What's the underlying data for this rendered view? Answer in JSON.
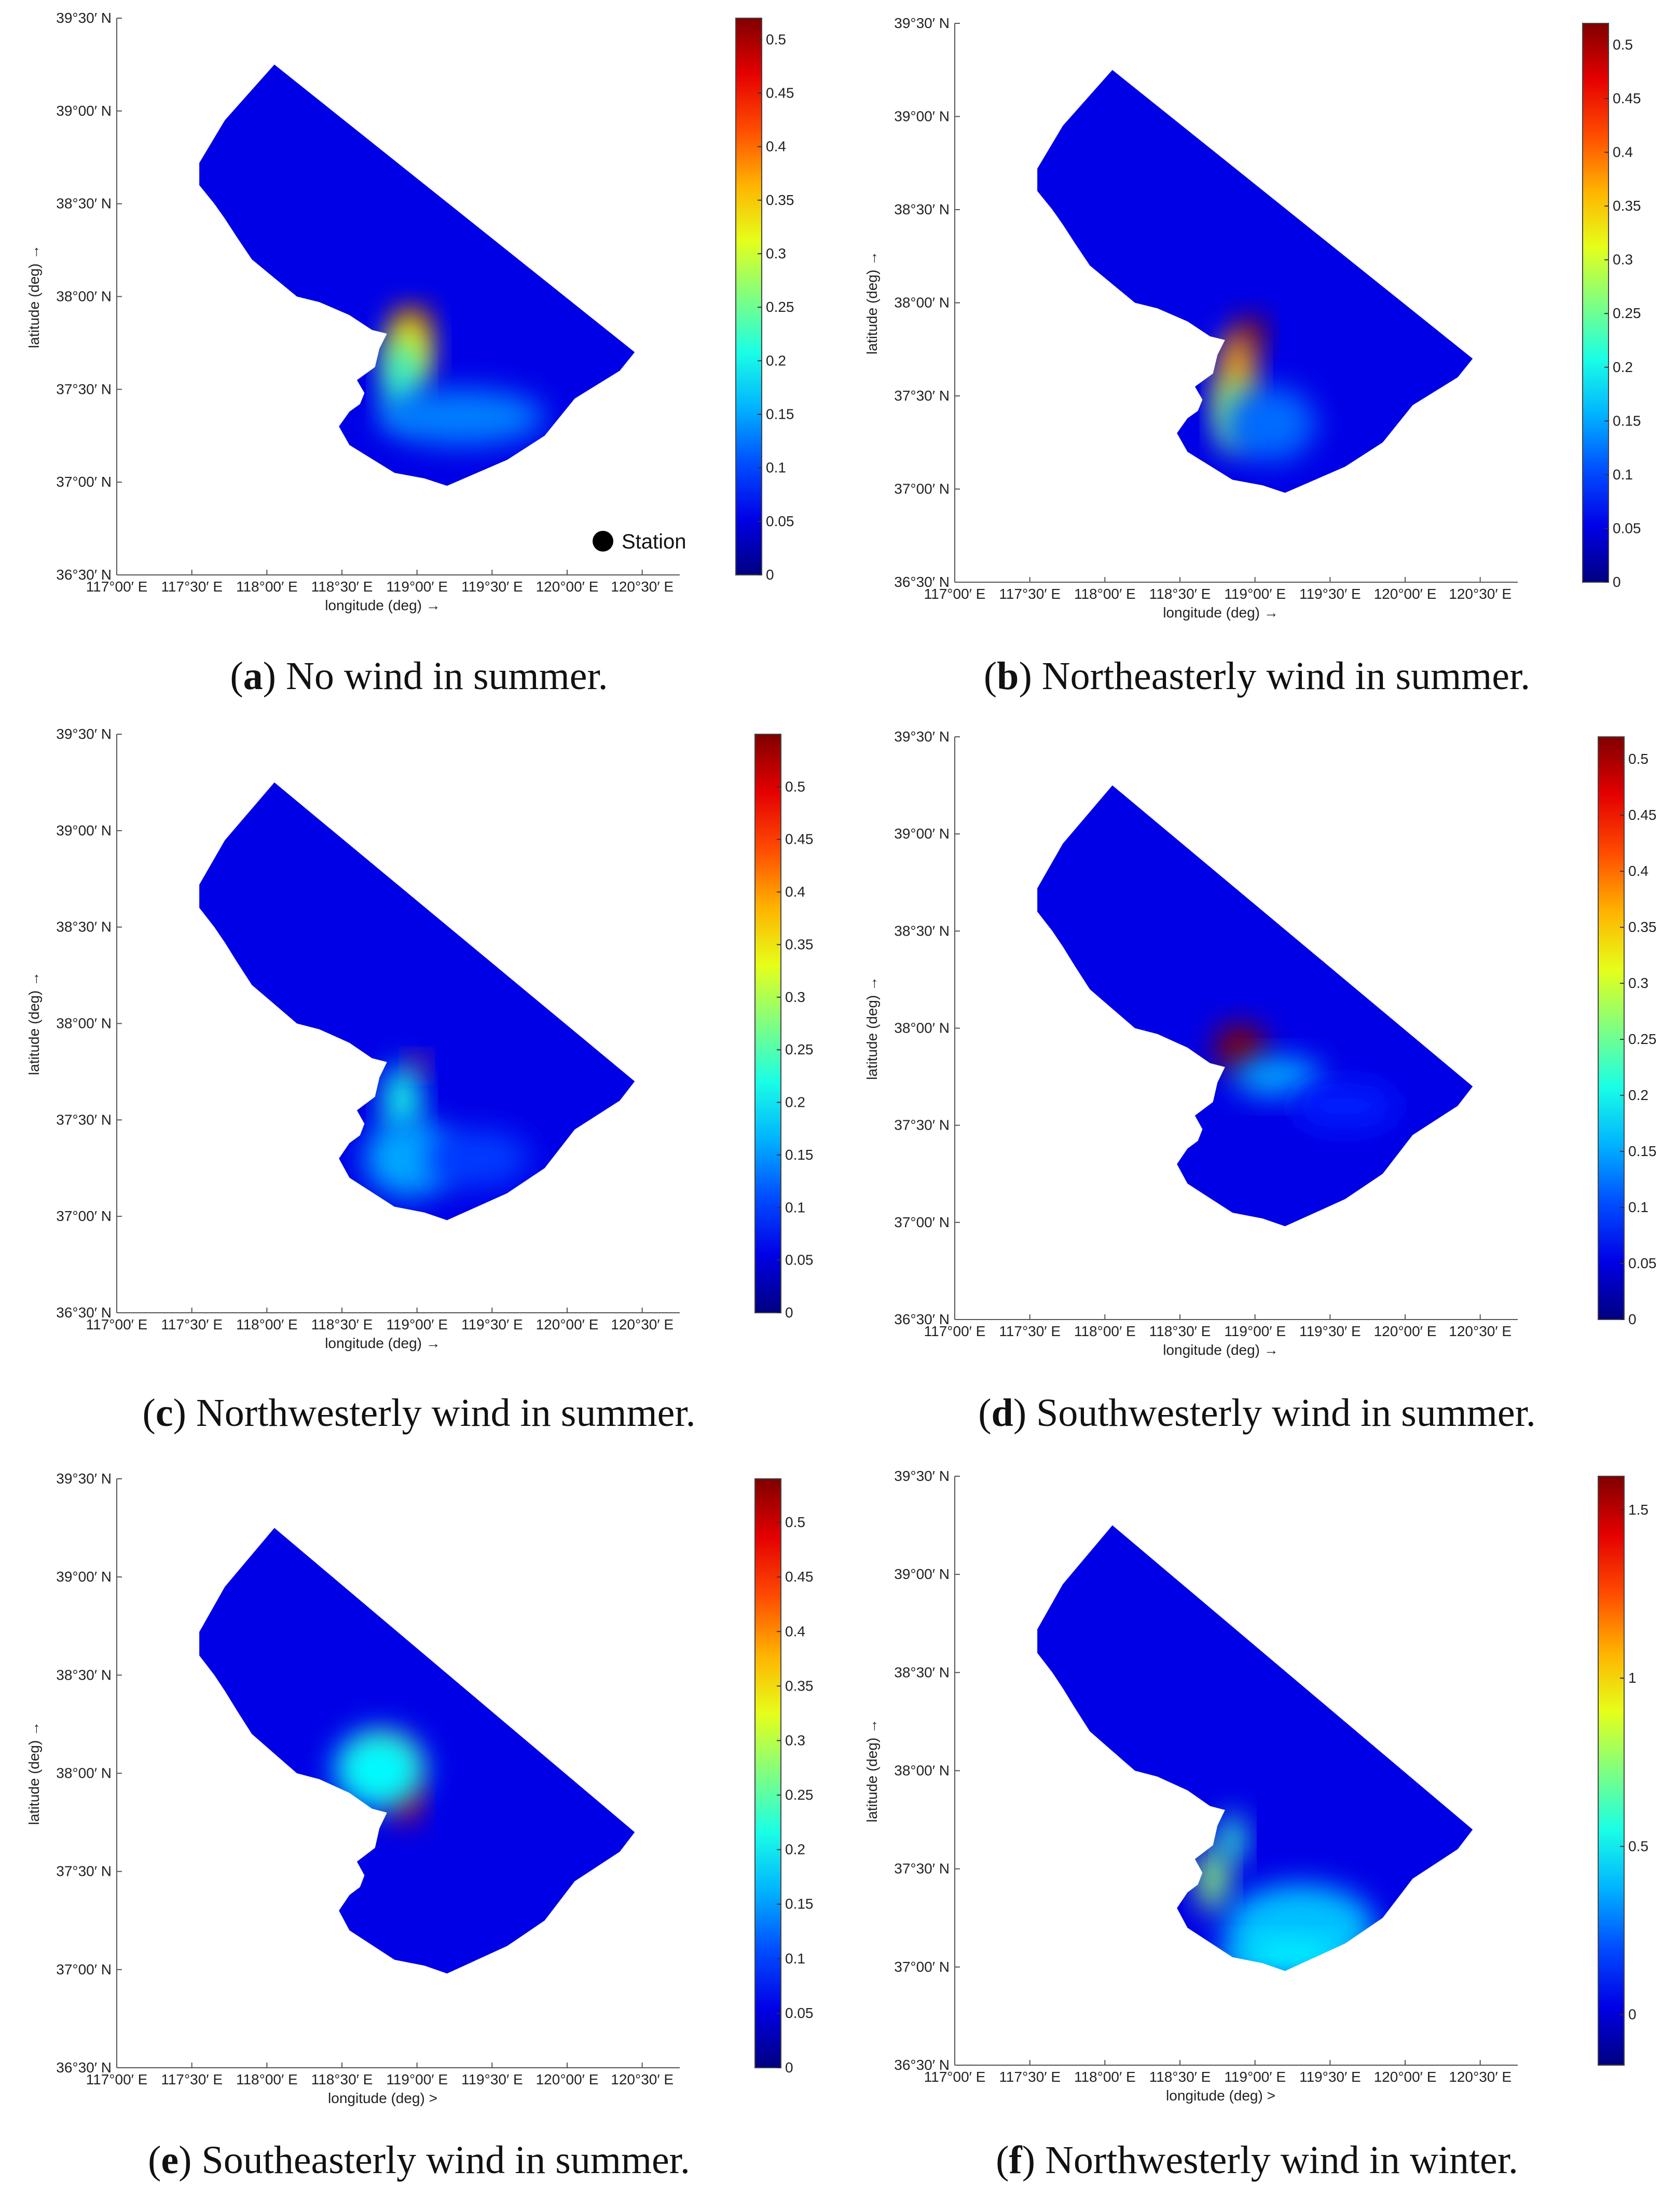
{
  "chart_data": [
    {
      "panel_id": "a",
      "type": "heatmap",
      "caption_letter": "a",
      "caption_text": "No wind in summer.",
      "xlabel": "longitude (deg) →",
      "ylabel": "latitude (deg) →",
      "x_ticks": [
        "117°00′ E",
        "117°30′ E",
        "118°00′ E",
        "118°30′ E",
        "119°00′ E",
        "119°30′ E",
        "120°00′ E",
        "120°30′ E"
      ],
      "y_ticks": [
        "36°30′ N",
        "37°00′ N",
        "37°30′ N",
        "38°00′ N",
        "38°30′ N",
        "39°00′ N",
        "39°30′ N"
      ],
      "xlim": [
        117.0,
        120.75
      ],
      "ylim": [
        36.5,
        39.5
      ],
      "colorbar_ticks": [
        "0",
        "0.05",
        "0.1",
        "0.15",
        "0.2",
        "0.25",
        "0.3",
        "0.35",
        "0.4",
        "0.45",
        "0.5"
      ],
      "colorbar_range": [
        0,
        0.52
      ],
      "legend": {
        "label": "Station",
        "position": "bottom-right"
      },
      "hotspots": [
        {
          "lon": 118.97,
          "lat": 37.85,
          "rx": 0.11,
          "ry": 0.09,
          "value": 0.52
        },
        {
          "lon": 118.95,
          "lat": 37.72,
          "rx": 0.14,
          "ry": 0.2,
          "value": 0.33
        },
        {
          "lon": 118.9,
          "lat": 37.55,
          "rx": 0.12,
          "ry": 0.22,
          "value": 0.22
        },
        {
          "lon": 119.3,
          "lat": 37.35,
          "rx": 0.55,
          "ry": 0.15,
          "value": 0.13
        }
      ]
    },
    {
      "panel_id": "b",
      "type": "heatmap",
      "caption_letter": "b",
      "caption_text": "Northeasterly wind in summer.",
      "xlabel": "longitude (deg) →",
      "ylabel": "latitude (deg) →",
      "x_ticks": [
        "117°00′ E",
        "117°30′ E",
        "118°00′ E",
        "118°30′ E",
        "119°00′ E",
        "119°30′ E",
        "120°00′ E",
        "120°30′ E"
      ],
      "y_ticks": [
        "36°30′ N",
        "37°00′ N",
        "37°30′ N",
        "38°00′ N",
        "38°30′ N",
        "39°00′ N",
        "39°30′ N"
      ],
      "xlim": [
        117.0,
        120.75
      ],
      "ylim": [
        36.5,
        39.5
      ],
      "colorbar_ticks": [
        "0",
        "0.05",
        "0.1",
        "0.15",
        "0.2",
        "0.25",
        "0.3",
        "0.35",
        "0.4",
        "0.45",
        "0.5"
      ],
      "colorbar_range": [
        0,
        0.52
      ],
      "hotspots": [
        {
          "lon": 118.97,
          "lat": 37.83,
          "rx": 0.1,
          "ry": 0.1,
          "value": 0.52
        },
        {
          "lon": 118.88,
          "lat": 37.6,
          "rx": 0.12,
          "ry": 0.25,
          "value": 0.37
        },
        {
          "lon": 118.85,
          "lat": 37.4,
          "rx": 0.11,
          "ry": 0.2,
          "value": 0.26
        },
        {
          "lon": 119.1,
          "lat": 37.35,
          "rx": 0.3,
          "ry": 0.2,
          "value": 0.12
        }
      ]
    },
    {
      "panel_id": "c",
      "type": "heatmap",
      "caption_letter": "c",
      "caption_text": "Northwesterly wind in summer.",
      "xlabel": "longitude (deg) →",
      "ylabel": "latitude (deg) →",
      "x_ticks": [
        "117°00′ E",
        "117°30′ E",
        "118°00′ E",
        "118°30′ E",
        "119°00′ E",
        "119°30′ E",
        "120°00′ E",
        "120°30′ E"
      ],
      "y_ticks": [
        "36°30′ N",
        "37°00′ N",
        "37°30′ N",
        "38°00′ N",
        "38°30′ N",
        "39°00′ N",
        "39°30′ N"
      ],
      "xlim": [
        117.0,
        120.75
      ],
      "ylim": [
        36.5,
        39.5
      ],
      "colorbar_ticks": [
        "0",
        "0.05",
        "0.1",
        "0.15",
        "0.2",
        "0.25",
        "0.3",
        "0.35",
        "0.4",
        "0.45",
        "0.5"
      ],
      "colorbar_range": [
        0,
        0.55
      ],
      "hotspots": [
        {
          "lon": 119.0,
          "lat": 37.78,
          "rx": 0.06,
          "ry": 0.05,
          "value": 0.45
        },
        {
          "lon": 118.9,
          "lat": 37.6,
          "rx": 0.12,
          "ry": 0.18,
          "value": 0.22
        },
        {
          "lon": 118.95,
          "lat": 37.3,
          "rx": 0.3,
          "ry": 0.2,
          "value": 0.16
        },
        {
          "lon": 119.4,
          "lat": 37.3,
          "rx": 0.35,
          "ry": 0.15,
          "value": 0.1
        }
      ]
    },
    {
      "panel_id": "d",
      "type": "heatmap",
      "caption_letter": "d",
      "caption_text": "Southwesterly wind in summer.",
      "xlabel": "longitude (deg) →",
      "ylabel": "latitude (deg) →",
      "x_ticks": [
        "117°00′ E",
        "117°30′ E",
        "118°00′ E",
        "118°30′ E",
        "119°00′ E",
        "119°30′ E",
        "120°00′ E",
        "120°30′ E"
      ],
      "y_ticks": [
        "36°30′ N",
        "37°00′ N",
        "37°30′ N",
        "38°00′ N",
        "38°30′ N",
        "39°00′ N",
        "39°30′ N"
      ],
      "xlim": [
        117.0,
        120.75
      ],
      "ylim": [
        36.5,
        39.5
      ],
      "colorbar_ticks": [
        "0",
        "0.05",
        "0.1",
        "0.15",
        "0.2",
        "0.25",
        "0.3",
        "0.35",
        "0.4",
        "0.45",
        "0.5"
      ],
      "colorbar_range": [
        0,
        0.52
      ],
      "hotspots": [
        {
          "lon": 118.9,
          "lat": 37.9,
          "rx": 0.17,
          "ry": 0.12,
          "value": 0.52
        },
        {
          "lon": 119.15,
          "lat": 37.75,
          "rx": 0.3,
          "ry": 0.1,
          "value": 0.15
        },
        {
          "lon": 119.6,
          "lat": 37.6,
          "rx": 0.35,
          "ry": 0.12,
          "value": 0.08
        }
      ]
    },
    {
      "panel_id": "e",
      "type": "heatmap",
      "caption_letter": "e",
      "caption_text": "Southeasterly wind in summer.",
      "xlabel": "longitude (deg) >",
      "ylabel": "latitude (deg) →",
      "x_ticks": [
        "117°00′ E",
        "117°30′ E",
        "118°00′ E",
        "118°30′ E",
        "119°00′ E",
        "119°30′ E",
        "120°00′ E",
        "120°30′ E"
      ],
      "y_ticks": [
        "36°30′ N",
        "37°00′ N",
        "37°30′ N",
        "38°00′ N",
        "38°30′ N",
        "39°00′ N",
        "39°30′ N"
      ],
      "xlim": [
        117.0,
        120.75
      ],
      "ylim": [
        36.5,
        39.5
      ],
      "colorbar_ticks": [
        "0",
        "0.05",
        "0.1",
        "0.15",
        "0.2",
        "0.25",
        "0.3",
        "0.35",
        "0.4",
        "0.45",
        "0.5"
      ],
      "colorbar_range": [
        0,
        0.54
      ],
      "hotspots": [
        {
          "lon": 118.78,
          "lat": 38.05,
          "rx": 0.18,
          "ry": 0.12,
          "value": 0.44
        },
        {
          "lon": 118.92,
          "lat": 37.88,
          "rx": 0.1,
          "ry": 0.13,
          "value": 0.5
        },
        {
          "lon": 118.75,
          "lat": 38.02,
          "rx": 0.3,
          "ry": 0.2,
          "value": 0.2
        }
      ]
    },
    {
      "panel_id": "f",
      "type": "heatmap",
      "caption_letter": "f",
      "caption_text": "Northwesterly wind in winter.",
      "xlabel": "longitude (deg) >",
      "ylabel": "latitude (deg) →",
      "x_ticks": [
        "117°00′ E",
        "117°30′ E",
        "118°00′ E",
        "118°30′ E",
        "119°00′ E",
        "119°30′ E",
        "120°00′ E",
        "120°30′ E"
      ],
      "y_ticks": [
        "36°30′ N",
        "37°00′ N",
        "37°30′ N",
        "38°00′ N",
        "38°30′ N",
        "39°00′ N",
        "39°30′ N"
      ],
      "xlim": [
        117.0,
        120.75
      ],
      "ylim": [
        36.5,
        39.5
      ],
      "colorbar_ticks": [
        "0",
        "0.5",
        "1",
        "1.5"
      ],
      "colorbar_range": [
        -0.15,
        1.6
      ],
      "hotspots": [
        {
          "lon": 118.72,
          "lat": 37.45,
          "rx": 0.1,
          "ry": 0.17,
          "value": 0.75
        },
        {
          "lon": 118.85,
          "lat": 37.65,
          "rx": 0.08,
          "ry": 0.13,
          "value": 0.6
        },
        {
          "lon": 119.3,
          "lat": 37.2,
          "rx": 0.5,
          "ry": 0.22,
          "value": 0.4
        },
        {
          "lon": 119.2,
          "lat": 37.05,
          "rx": 0.45,
          "ry": 0.08,
          "value": 0.5
        }
      ]
    }
  ]
}
